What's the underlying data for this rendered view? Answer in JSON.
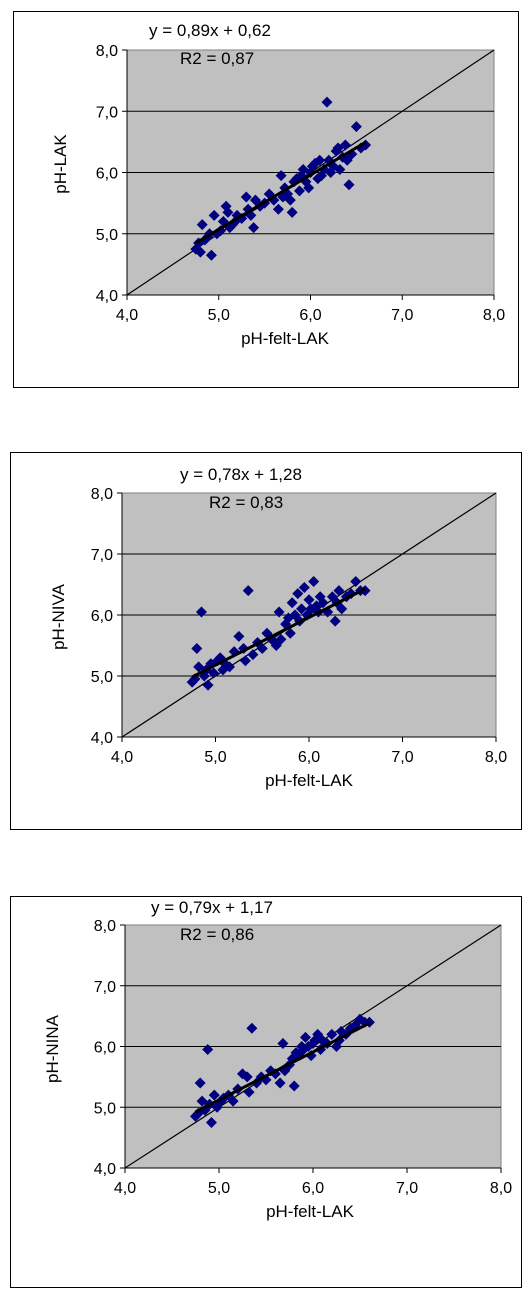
{
  "chart_data": [
    {
      "type": "scatter",
      "title": "",
      "xlabel": "pH-felt-LAK",
      "ylabel": "pH-LAK",
      "xlim": [
        4.0,
        8.0
      ],
      "ylim": [
        4.0,
        8.0
      ],
      "x_ticks": [
        "4,0",
        "5,0",
        "6,0",
        "7,0",
        "8,0"
      ],
      "y_ticks": [
        "4,0",
        "5,0",
        "6,0",
        "7,0",
        "8,0"
      ],
      "grid": "horizontal",
      "plot_background": "#c0c0c0",
      "marker_color": "#000080",
      "marker": "diamond",
      "legend": "none",
      "equation": "y = 0,89x + 0,62",
      "r2": "R2 = 0,87",
      "trendline": {
        "slope": 0.89,
        "intercept": 0.62
      },
      "reference_line": "1:1",
      "points": [
        [
          4.75,
          4.75
        ],
        [
          4.78,
          4.85
        ],
        [
          4.8,
          4.7
        ],
        [
          4.82,
          5.15
        ],
        [
          4.85,
          4.9
        ],
        [
          4.88,
          4.95
        ],
        [
          4.9,
          5.0
        ],
        [
          4.92,
          4.65
        ],
        [
          4.95,
          5.3
        ],
        [
          4.98,
          5.0
        ],
        [
          5.02,
          5.05
        ],
        [
          5.05,
          5.2
        ],
        [
          5.08,
          5.45
        ],
        [
          5.1,
          5.35
        ],
        [
          5.12,
          5.1
        ],
        [
          5.15,
          5.15
        ],
        [
          5.18,
          5.2
        ],
        [
          5.2,
          5.3
        ],
        [
          5.25,
          5.25
        ],
        [
          5.3,
          5.6
        ],
        [
          5.32,
          5.4
        ],
        [
          5.35,
          5.3
        ],
        [
          5.38,
          5.1
        ],
        [
          5.4,
          5.55
        ],
        [
          5.45,
          5.45
        ],
        [
          5.5,
          5.5
        ],
        [
          5.55,
          5.65
        ],
        [
          5.6,
          5.55
        ],
        [
          5.65,
          5.4
        ],
        [
          5.68,
          5.95
        ],
        [
          5.7,
          5.6
        ],
        [
          5.72,
          5.75
        ],
        [
          5.75,
          5.65
        ],
        [
          5.78,
          5.55
        ],
        [
          5.8,
          5.35
        ],
        [
          5.82,
          5.85
        ],
        [
          5.85,
          5.9
        ],
        [
          5.88,
          5.7
        ],
        [
          5.9,
          5.95
        ],
        [
          5.92,
          6.05
        ],
        [
          5.95,
          5.85
        ],
        [
          5.98,
          5.75
        ],
        [
          6.0,
          6.0
        ],
        [
          6.02,
          6.1
        ],
        [
          6.05,
          6.15
        ],
        [
          6.08,
          5.9
        ],
        [
          6.1,
          6.2
        ],
        [
          6.12,
          5.95
        ],
        [
          6.15,
          6.05
        ],
        [
          6.18,
          7.15
        ],
        [
          6.2,
          6.2
        ],
        [
          6.22,
          6.0
        ],
        [
          6.25,
          6.1
        ],
        [
          6.28,
          6.35
        ],
        [
          6.3,
          6.4
        ],
        [
          6.32,
          6.05
        ],
        [
          6.35,
          6.25
        ],
        [
          6.38,
          6.45
        ],
        [
          6.4,
          6.2
        ],
        [
          6.42,
          5.8
        ],
        [
          6.45,
          6.3
        ],
        [
          6.5,
          6.75
        ],
        [
          6.55,
          6.4
        ],
        [
          6.6,
          6.45
        ]
      ]
    },
    {
      "type": "scatter",
      "title": "",
      "xlabel": "pH-felt-LAK",
      "ylabel": "pH-NIVA",
      "xlim": [
        4.0,
        8.0
      ],
      "ylim": [
        4.0,
        8.0
      ],
      "x_ticks": [
        "4,0",
        "5,0",
        "6,0",
        "7,0",
        "8,0"
      ],
      "y_ticks": [
        "4,0",
        "5,0",
        "6,0",
        "7,0",
        "8,0"
      ],
      "grid": "horizontal",
      "plot_background": "#c0c0c0",
      "marker_color": "#000080",
      "marker": "diamond",
      "legend": "none",
      "equation": "y = 0,78x + 1,28",
      "r2": "R2 = 0,83",
      "trendline": {
        "slope": 0.78,
        "intercept": 1.28
      },
      "reference_line": "1:1",
      "points": [
        [
          4.75,
          4.9
        ],
        [
          4.78,
          4.95
        ],
        [
          4.8,
          5.45
        ],
        [
          4.82,
          5.15
        ],
        [
          4.85,
          6.05
        ],
        [
          4.88,
          5.0
        ],
        [
          4.9,
          5.1
        ],
        [
          4.92,
          4.85
        ],
        [
          4.95,
          5.2
        ],
        [
          4.98,
          5.05
        ],
        [
          5.02,
          5.25
        ],
        [
          5.05,
          5.3
        ],
        [
          5.08,
          5.1
        ],
        [
          5.1,
          5.2
        ],
        [
          5.15,
          5.15
        ],
        [
          5.2,
          5.4
        ],
        [
          5.25,
          5.65
        ],
        [
          5.3,
          5.45
        ],
        [
          5.32,
          5.25
        ],
        [
          5.35,
          6.4
        ],
        [
          5.4,
          5.35
        ],
        [
          5.45,
          5.55
        ],
        [
          5.5,
          5.45
        ],
        [
          5.55,
          5.7
        ],
        [
          5.6,
          5.6
        ],
        [
          5.65,
          5.5
        ],
        [
          5.68,
          6.05
        ],
        [
          5.7,
          5.6
        ],
        [
          5.75,
          5.85
        ],
        [
          5.78,
          5.95
        ],
        [
          5.8,
          5.7
        ],
        [
          5.82,
          6.2
        ],
        [
          5.85,
          6.0
        ],
        [
          5.88,
          6.35
        ],
        [
          5.9,
          5.9
        ],
        [
          5.92,
          6.1
        ],
        [
          5.95,
          6.45
        ],
        [
          5.98,
          6.0
        ],
        [
          6.0,
          6.25
        ],
        [
          6.02,
          6.1
        ],
        [
          6.05,
          6.55
        ],
        [
          6.08,
          6.15
        ],
        [
          6.1,
          6.05
        ],
        [
          6.12,
          6.3
        ],
        [
          6.15,
          6.2
        ],
        [
          6.2,
          6.05
        ],
        [
          6.25,
          6.3
        ],
        [
          6.28,
          5.9
        ],
        [
          6.3,
          6.2
        ],
        [
          6.32,
          6.4
        ],
        [
          6.35,
          6.1
        ],
        [
          6.4,
          6.3
        ],
        [
          6.45,
          6.35
        ],
        [
          6.5,
          6.55
        ],
        [
          6.55,
          6.4
        ],
        [
          6.6,
          6.4
        ]
      ]
    },
    {
      "type": "scatter",
      "title": "",
      "xlabel": "pH-felt-LAK",
      "ylabel": "pH-NINA",
      "xlim": [
        4.0,
        8.0
      ],
      "ylim": [
        4.0,
        8.0
      ],
      "x_ticks": [
        "4,0",
        "5,0",
        "6,0",
        "7,0",
        "8,0"
      ],
      "y_ticks": [
        "4,0",
        "5,0",
        "6,0",
        "7,0",
        "8,0"
      ],
      "grid": "horizontal",
      "plot_background": "#c0c0c0",
      "marker_color": "#000080",
      "marker": "diamond",
      "legend": "none",
      "equation": "y = 0,79x + 1,17",
      "r2": "R2 = 0,86",
      "trendline": {
        "slope": 0.79,
        "intercept": 1.17
      },
      "reference_line": "1:1",
      "points": [
        [
          4.75,
          4.85
        ],
        [
          4.78,
          4.9
        ],
        [
          4.8,
          5.4
        ],
        [
          4.82,
          5.1
        ],
        [
          4.85,
          4.95
        ],
        [
          4.88,
          5.95
        ],
        [
          4.9,
          5.05
        ],
        [
          4.92,
          4.75
        ],
        [
          4.95,
          5.2
        ],
        [
          4.98,
          5.0
        ],
        [
          5.02,
          5.1
        ],
        [
          5.05,
          5.15
        ],
        [
          5.1,
          5.2
        ],
        [
          5.15,
          5.1
        ],
        [
          5.2,
          5.3
        ],
        [
          5.25,
          5.55
        ],
        [
          5.3,
          5.5
        ],
        [
          5.32,
          5.25
        ],
        [
          5.35,
          6.3
        ],
        [
          5.4,
          5.4
        ],
        [
          5.45,
          5.5
        ],
        [
          5.5,
          5.45
        ],
        [
          5.55,
          5.6
        ],
        [
          5.6,
          5.55
        ],
        [
          5.65,
          5.4
        ],
        [
          5.68,
          6.05
        ],
        [
          5.7,
          5.6
        ],
        [
          5.75,
          5.7
        ],
        [
          5.78,
          5.8
        ],
        [
          5.8,
          5.35
        ],
        [
          5.82,
          5.9
        ],
        [
          5.85,
          5.85
        ],
        [
          5.88,
          6.0
        ],
        [
          5.9,
          5.95
        ],
        [
          5.92,
          6.15
        ],
        [
          5.95,
          6.0
        ],
        [
          5.98,
          5.85
        ],
        [
          6.0,
          6.05
        ],
        [
          6.02,
          6.1
        ],
        [
          6.05,
          6.2
        ],
        [
          6.08,
          5.95
        ],
        [
          6.1,
          6.1
        ],
        [
          6.15,
          6.05
        ],
        [
          6.2,
          6.2
        ],
        [
          6.25,
          6.0
        ],
        [
          6.28,
          6.1
        ],
        [
          6.3,
          6.25
        ],
        [
          6.35,
          6.2
        ],
        [
          6.4,
          6.3
        ],
        [
          6.45,
          6.35
        ],
        [
          6.5,
          6.45
        ],
        [
          6.55,
          6.4
        ],
        [
          6.6,
          6.4
        ]
      ]
    }
  ]
}
